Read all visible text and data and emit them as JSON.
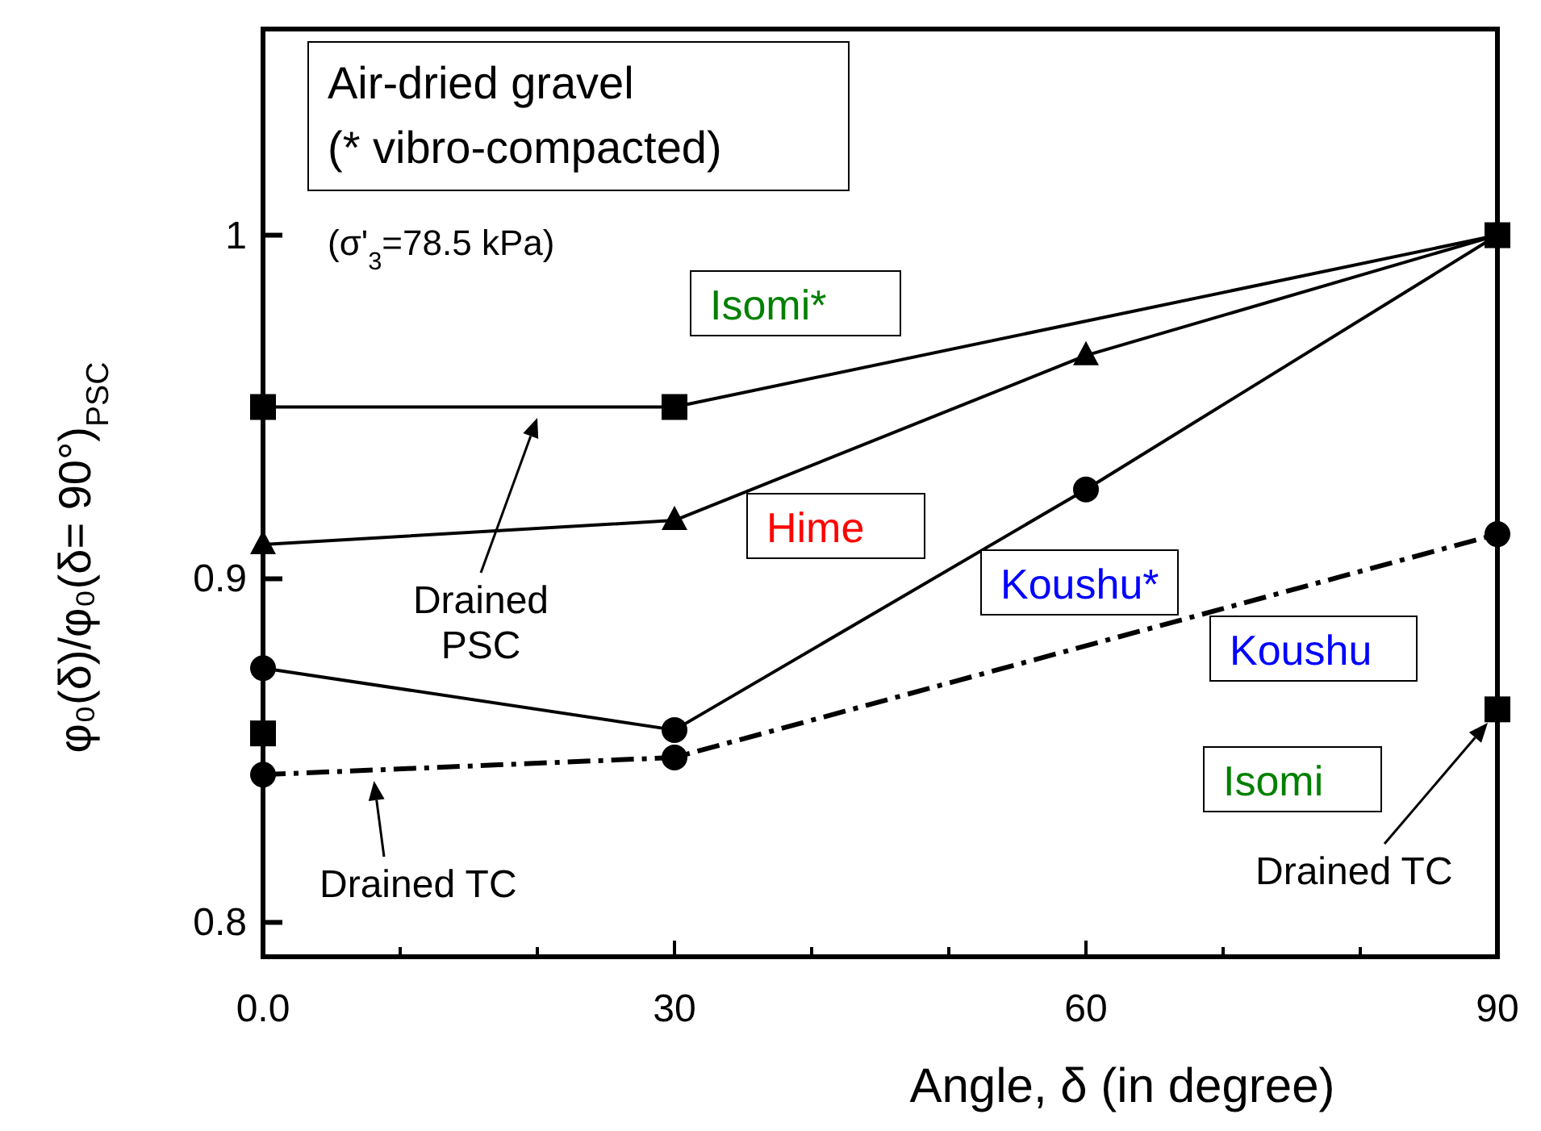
{
  "chart_data": {
    "type": "line",
    "title": "Air-dried gravel (* vibro-compacted)",
    "xlabel": "Angle, δ (in degree)",
    "ylabel": "φ₀(δ)/φ₀(δ= 90°)$_{PSC}$",
    "xlim": [
      0,
      90
    ],
    "xticks": [
      {
        "value": 0,
        "label": "0.0"
      },
      {
        "value": 10,
        "label": null
      },
      {
        "value": 20,
        "label": null
      },
      30,
      {
        "value": 40,
        "label": null
      },
      {
        "value": 50,
        "label": null
      },
      60,
      {
        "value": 70,
        "label": null
      },
      {
        "value": 80,
        "label": null
      },
      90
    ],
    "ylim": [
      0.79,
      1.06
    ],
    "yticks": [
      0.8,
      0.9,
      1.0
    ],
    "grid": false,
    "legend": false,
    "line_style": "solid",
    "series": [
      {
        "name": "Isomi*",
        "color": "#000000",
        "marker": "square",
        "x": [
          0,
          30,
          90
        ],
        "values": [
          0.95,
          0.95,
          1.0
        ]
      },
      {
        "name": "Hime",
        "color": "#000000",
        "marker": "triangle",
        "x": [
          0,
          30,
          60,
          90
        ],
        "values": [
          0.91,
          0.917,
          0.965,
          1.0
        ]
      },
      {
        "name": "Koushu*",
        "color": "#000000",
        "marker": "circle",
        "x": [
          0,
          30,
          60,
          90
        ],
        "values": [
          0.874,
          0.856,
          0.926,
          1.0
        ]
      },
      {
        "name": "Koushu",
        "color": "#000000",
        "marker": "circle",
        "line_style": "dashed",
        "x": [
          0,
          30,
          90
        ],
        "values": [
          0.843,
          0.848,
          0.913
        ]
      },
      {
        "name": "Isomi",
        "color": "#000000",
        "type": "scatter",
        "marker": "square",
        "x": [
          0,
          90
        ],
        "values": [
          0.855,
          0.862
        ]
      }
    ],
    "annotations": [
      "(σ'$_{3}$=78.5 kPa)",
      "Drained PSC",
      {
        "text": "Drained TC",
        "x": 8,
        "y": 0.844
      },
      "Drained TC"
    ]
  }
}
